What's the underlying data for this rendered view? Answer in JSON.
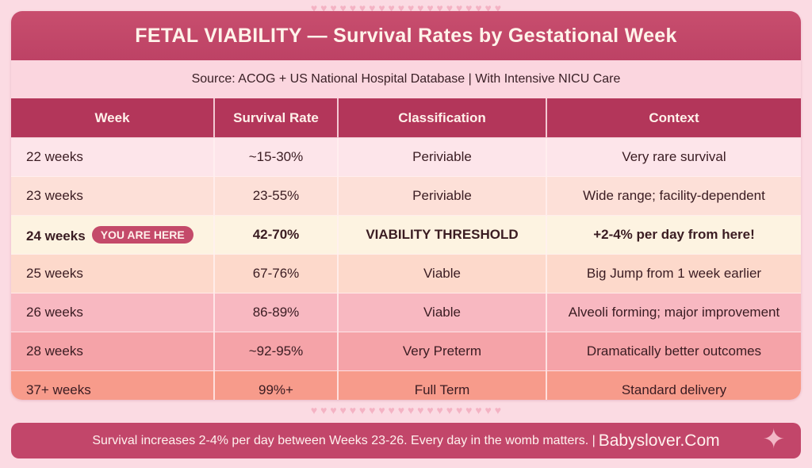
{
  "title": "FETAL VIABILITY — Survival Rates by Gestational Week",
  "source": "Source: ACOG + US National Hospital Database | With Intensive NICU Care",
  "columns": [
    "Week",
    "Survival Rate",
    "Classification",
    "Context"
  ],
  "rows": [
    {
      "week": "22 weeks",
      "rate": "~15-30%",
      "class": "Periviable",
      "context": "Very rare survival",
      "bg": "#fde5ea"
    },
    {
      "week": "23 weeks",
      "rate": "23-55%",
      "class": "Periviable",
      "context": "Wide range; facility-dependent",
      "bg": "#fde0d8"
    },
    {
      "week": "24 weeks",
      "badge": "YOU ARE HERE",
      "rate": "42-70%",
      "class": "VIABILITY THRESHOLD",
      "context": "+2-4% per day from here!",
      "bg": "#fdf3e1"
    },
    {
      "week": "25 weeks",
      "rate": "67-76%",
      "class": "Viable",
      "context": "Big Jump from 1 week earlier",
      "bg": "#fdd9cb"
    },
    {
      "week": "26 weeks",
      "rate": "86-89%",
      "class": "Viable",
      "context": "Alveoli forming; major improvement",
      "bg": "#f8b8c1"
    },
    {
      "week": "28 weeks",
      "rate": "~92-95%",
      "class": "Very Preterm",
      "context": "Dramatically better outcomes",
      "bg": "#f5a3a8"
    },
    {
      "week": "37+ weeks",
      "rate": "99%+",
      "class": "Full Term",
      "context": "Standard delivery",
      "bg": "#f79b8b"
    }
  ],
  "footer": {
    "text": "Survival increases 2-4% per day between Weeks 23-26. Every day in the womb matters. |",
    "brand": "Babyslover.Com"
  },
  "icons": {
    "pattern": "baby-feet-and-hearts",
    "corner": "sparkle-icon"
  },
  "colors": {
    "accent": "#c44a6a",
    "header": "#b3365a",
    "background": "#fbdbe3"
  }
}
